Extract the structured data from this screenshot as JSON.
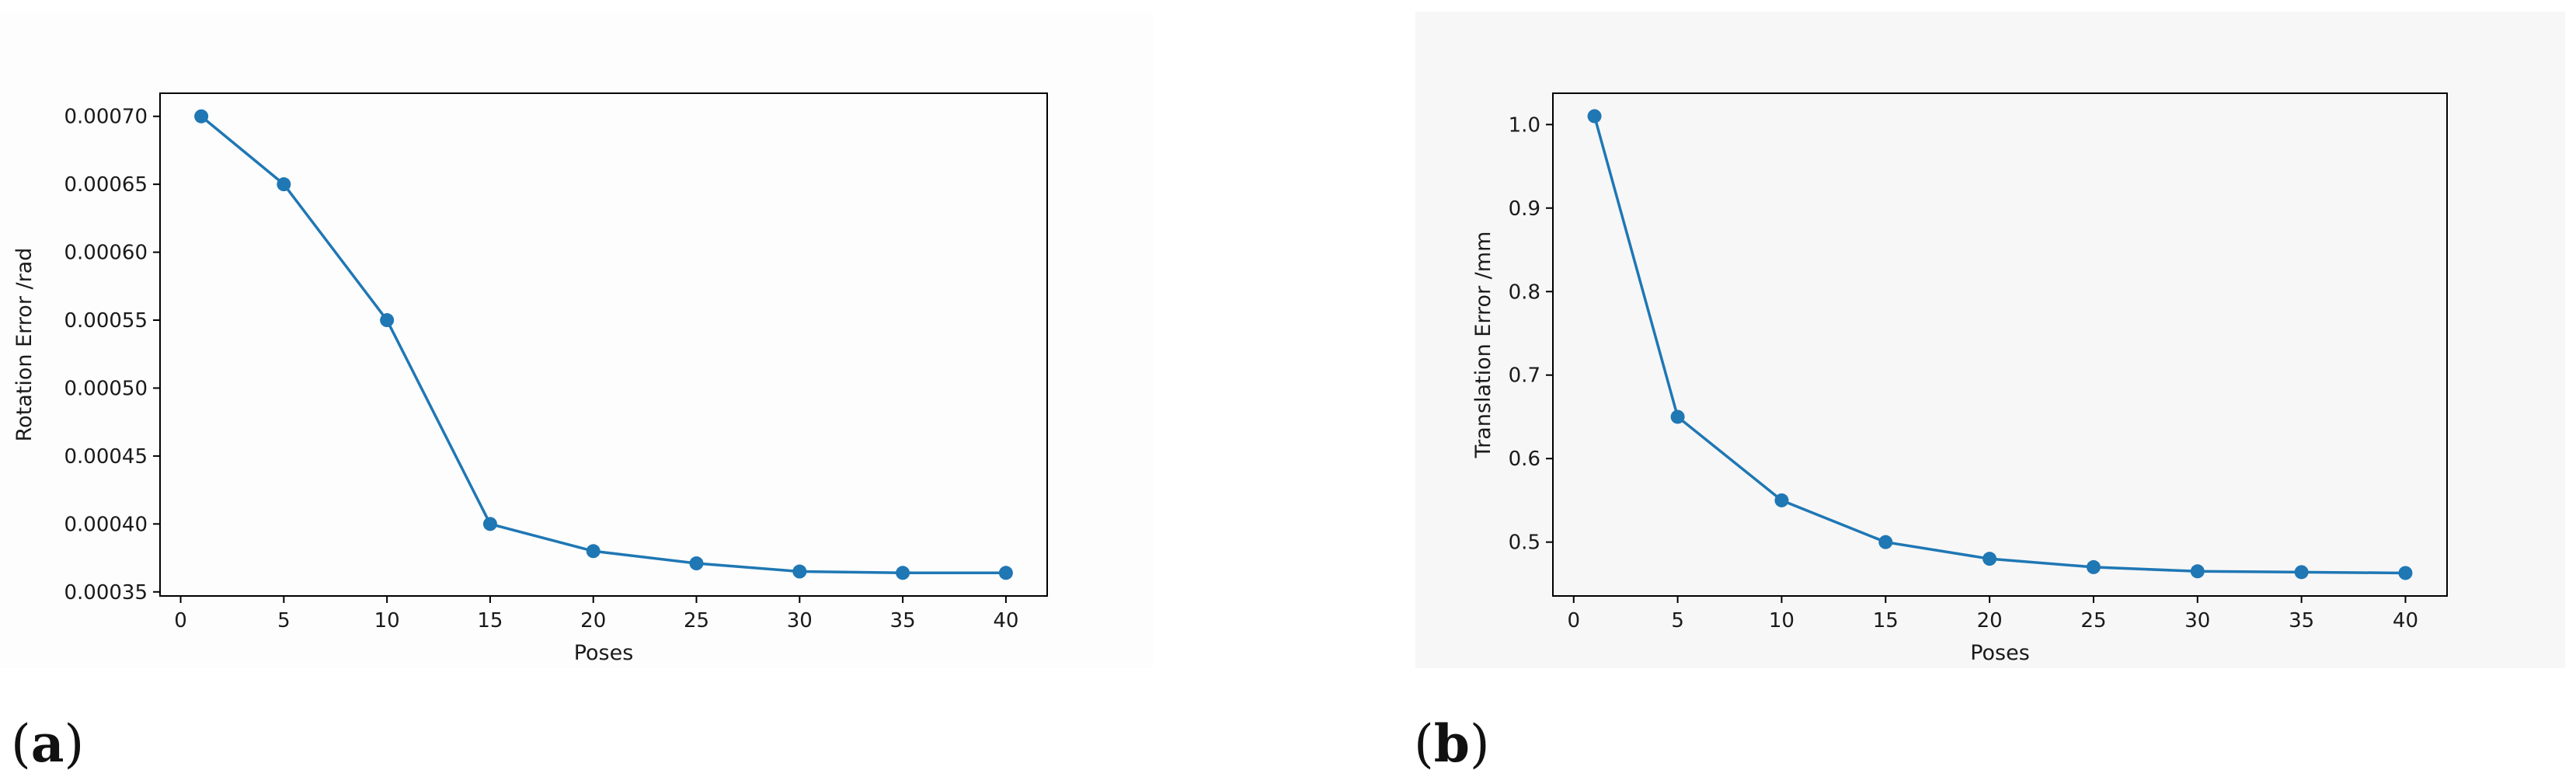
{
  "panels": [
    {
      "letter_open": "(",
      "letter": "a",
      "letter_close": ")"
    },
    {
      "letter_open": "(",
      "letter": "b",
      "letter_close": ")"
    }
  ],
  "chart_data": [
    {
      "type": "line",
      "title": "",
      "xlabel": "Poses",
      "ylabel": "Rotation Error /rad",
      "x": [
        1,
        5,
        10,
        15,
        20,
        25,
        30,
        35,
        40
      ],
      "series": [
        {
          "values": [
            0.0007,
            0.00065,
            0.00055,
            0.0004,
            0.00038,
            0.000371,
            0.000365,
            0.000364,
            0.000364
          ],
          "color": "#1f77b4",
          "marker": "circle"
        }
      ],
      "xlim": [
        -1,
        42
      ],
      "ylim": [
        0.000347,
        0.000717
      ],
      "xticks": [
        0,
        5,
        10,
        15,
        20,
        25,
        30,
        35,
        40
      ],
      "xtick_labels": [
        "0",
        "5",
        "10",
        "15",
        "20",
        "25",
        "30",
        "35",
        "40"
      ],
      "yticks": [
        0.00035,
        0.0004,
        0.00045,
        0.0005,
        0.00055,
        0.0006,
        0.00065,
        0.0007
      ],
      "ytick_labels": [
        "0.00035",
        "0.00040",
        "0.00045",
        "0.00050",
        "0.00055",
        "0.00060",
        "0.00065",
        "0.00070"
      ],
      "grid": false,
      "legend": "none"
    },
    {
      "type": "line",
      "title": "",
      "xlabel": "Poses",
      "ylabel": "Translation Error /mm",
      "x": [
        1,
        5,
        10,
        15,
        20,
        25,
        30,
        35,
        40
      ],
      "series": [
        {
          "values": [
            1.01,
            0.65,
            0.55,
            0.5,
            0.48,
            0.47,
            0.465,
            0.464,
            0.463
          ],
          "color": "#1f77b4",
          "marker": "circle"
        }
      ],
      "xlim": [
        -1,
        42
      ],
      "ylim": [
        0.4355,
        1.0375
      ],
      "xticks": [
        0,
        5,
        10,
        15,
        20,
        25,
        30,
        35,
        40
      ],
      "xtick_labels": [
        "0",
        "5",
        "10",
        "15",
        "20",
        "25",
        "30",
        "35",
        "40"
      ],
      "yticks": [
        0.5,
        0.6,
        0.7,
        0.8,
        0.9,
        1.0
      ],
      "ytick_labels": [
        "0.5",
        "0.6",
        "0.7",
        "0.8",
        "0.9",
        "1.0"
      ],
      "grid": false,
      "legend": "none"
    }
  ]
}
